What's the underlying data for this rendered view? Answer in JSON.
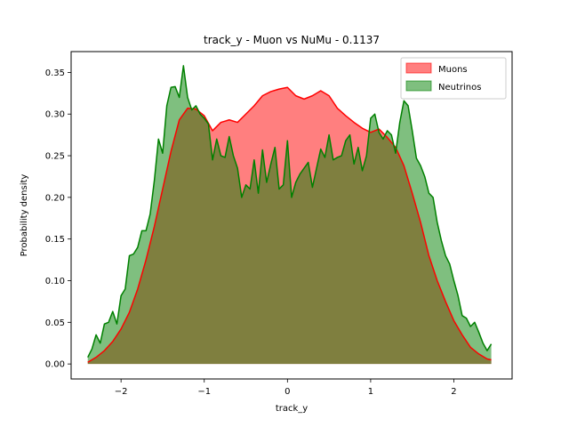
{
  "chart_data": {
    "type": "area",
    "title": "track_y - Muon vs NuMu - 0.1137",
    "xlabel": "track_y",
    "ylabel": "Probability density",
    "xlim": [
      -2.6,
      2.7
    ],
    "ylim": [
      -0.018,
      0.375
    ],
    "xticks": [
      -2,
      -1,
      0,
      1,
      2
    ],
    "xtick_labels": [
      "−2",
      "−1",
      "0",
      "1",
      "2"
    ],
    "yticks": [
      0.0,
      0.05,
      0.1,
      0.15,
      0.2,
      0.25,
      0.3,
      0.35
    ],
    "ytick_labels": [
      "0.00",
      "0.05",
      "0.10",
      "0.15",
      "0.20",
      "0.25",
      "0.30",
      "0.35"
    ],
    "grid": false,
    "legend_position": "top-right",
    "series": [
      {
        "name": "Muons",
        "line_color": "#ff0000",
        "fill_color": "#ff0000",
        "fill_opacity": 0.5,
        "x": [
          -2.4,
          -2.3,
          -2.2,
          -2.1,
          -2.0,
          -1.9,
          -1.8,
          -1.7,
          -1.6,
          -1.5,
          -1.4,
          -1.3,
          -1.2,
          -1.1,
          -1.0,
          -0.9,
          -0.8,
          -0.7,
          -0.6,
          -0.5,
          -0.4,
          -0.3,
          -0.2,
          -0.1,
          0.0,
          0.1,
          0.2,
          0.3,
          0.4,
          0.5,
          0.6,
          0.7,
          0.8,
          0.9,
          1.0,
          1.1,
          1.2,
          1.3,
          1.4,
          1.5,
          1.6,
          1.7,
          1.8,
          1.9,
          2.0,
          2.1,
          2.2,
          2.3,
          2.4,
          2.45
        ],
        "y": [
          0.002,
          0.008,
          0.016,
          0.027,
          0.042,
          0.062,
          0.09,
          0.125,
          0.165,
          0.21,
          0.255,
          0.293,
          0.307,
          0.306,
          0.298,
          0.28,
          0.29,
          0.293,
          0.29,
          0.3,
          0.31,
          0.322,
          0.327,
          0.33,
          0.332,
          0.322,
          0.318,
          0.322,
          0.328,
          0.322,
          0.307,
          0.298,
          0.29,
          0.283,
          0.278,
          0.282,
          0.272,
          0.26,
          0.238,
          0.205,
          0.17,
          0.13,
          0.1,
          0.075,
          0.052,
          0.035,
          0.02,
          0.012,
          0.006,
          0.005
        ]
      },
      {
        "name": "Neutrinos",
        "line_color": "#008000",
        "fill_color": "#008000",
        "fill_opacity": 0.5,
        "x": [
          -2.4,
          -2.35,
          -2.3,
          -2.25,
          -2.2,
          -2.15,
          -2.1,
          -2.05,
          -2.0,
          -1.95,
          -1.9,
          -1.85,
          -1.8,
          -1.75,
          -1.7,
          -1.65,
          -1.6,
          -1.55,
          -1.5,
          -1.45,
          -1.4,
          -1.35,
          -1.3,
          -1.25,
          -1.2,
          -1.15,
          -1.1,
          -1.05,
          -1.0,
          -0.95,
          -0.9,
          -0.85,
          -0.8,
          -0.75,
          -0.7,
          -0.65,
          -0.6,
          -0.55,
          -0.5,
          -0.45,
          -0.4,
          -0.35,
          -0.3,
          -0.25,
          -0.2,
          -0.15,
          -0.1,
          -0.05,
          0.0,
          0.05,
          0.1,
          0.15,
          0.2,
          0.25,
          0.3,
          0.35,
          0.4,
          0.45,
          0.5,
          0.55,
          0.6,
          0.65,
          0.7,
          0.75,
          0.8,
          0.85,
          0.9,
          0.95,
          1.0,
          1.05,
          1.1,
          1.15,
          1.2,
          1.25,
          1.3,
          1.35,
          1.4,
          1.45,
          1.5,
          1.55,
          1.6,
          1.65,
          1.7,
          1.75,
          1.8,
          1.85,
          1.9,
          1.95,
          2.0,
          2.05,
          2.1,
          2.15,
          2.2,
          2.25,
          2.3,
          2.35,
          2.4,
          2.45
        ],
        "y": [
          0.008,
          0.018,
          0.035,
          0.025,
          0.048,
          0.05,
          0.063,
          0.048,
          0.082,
          0.09,
          0.13,
          0.132,
          0.14,
          0.16,
          0.16,
          0.18,
          0.22,
          0.27,
          0.253,
          0.31,
          0.332,
          0.333,
          0.32,
          0.358,
          0.32,
          0.305,
          0.31,
          0.3,
          0.295,
          0.288,
          0.245,
          0.27,
          0.25,
          0.248,
          0.273,
          0.25,
          0.235,
          0.2,
          0.215,
          0.21,
          0.245,
          0.205,
          0.257,
          0.218,
          0.24,
          0.26,
          0.21,
          0.215,
          0.268,
          0.2,
          0.218,
          0.228,
          0.235,
          0.242,
          0.212,
          0.235,
          0.258,
          0.248,
          0.275,
          0.245,
          0.248,
          0.25,
          0.268,
          0.275,
          0.24,
          0.26,
          0.232,
          0.25,
          0.295,
          0.3,
          0.278,
          0.27,
          0.28,
          0.275,
          0.253,
          0.29,
          0.316,
          0.31,
          0.28,
          0.247,
          0.238,
          0.225,
          0.205,
          0.2,
          0.17,
          0.148,
          0.13,
          0.12,
          0.1,
          0.082,
          0.058,
          0.055,
          0.045,
          0.05,
          0.038,
          0.025,
          0.016,
          0.024
        ]
      }
    ]
  }
}
